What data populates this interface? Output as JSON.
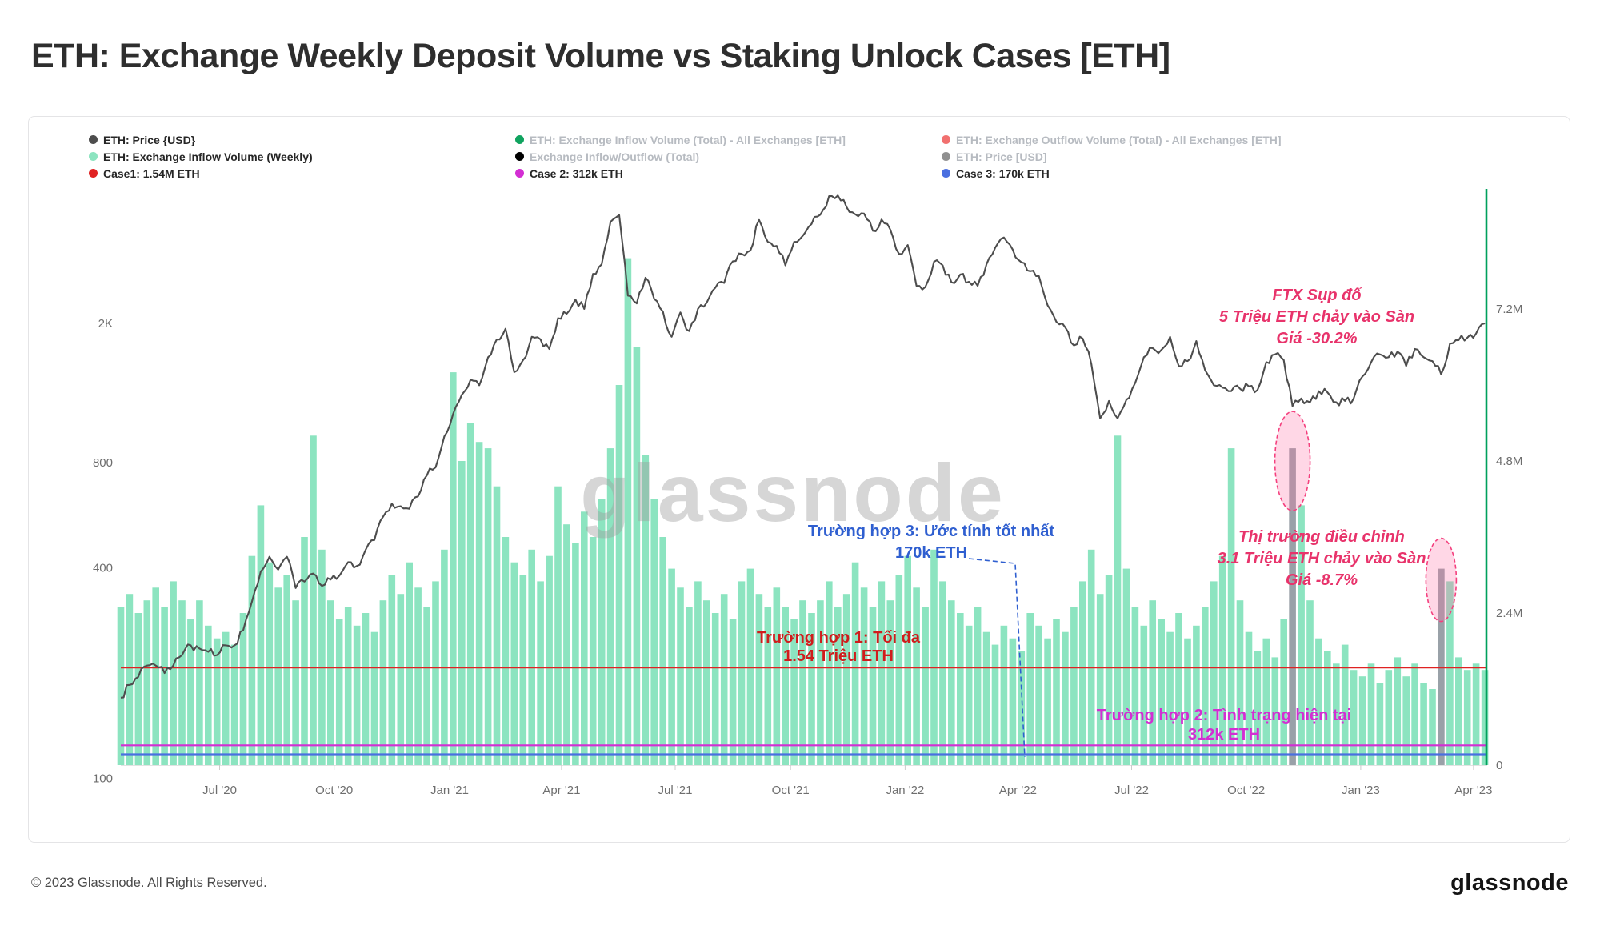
{
  "page_title": "ETH: Exchange Weekly Deposit Volume vs Staking Unlock Cases [ETH]",
  "watermark": "glassnode",
  "footer": {
    "copyright": "© 2023 Glassnode. All Rights Reserved.",
    "logo": "glassnode"
  },
  "legend": {
    "col1": [
      {
        "label": "ETH: Price {USD}",
        "dot": "#4d4d4d",
        "active": true
      },
      {
        "label": "ETH: Exchange Inflow Volume (Weekly)",
        "dot": "#8ce4c0",
        "active": true
      },
      {
        "label": "Case1: 1.54M ETH",
        "dot": "#e02222",
        "active": true
      }
    ],
    "col2": [
      {
        "label": "ETH: Exchange Inflow Volume (Total) - All Exchanges [ETH]",
        "dot": "#10a35f",
        "active": false
      },
      {
        "label": "Exchange Inflow/Outflow (Total)",
        "dot": "#000000",
        "active": false
      },
      {
        "label": "Case 2: 312k ETH",
        "dot": "#d32ed3",
        "active": true
      }
    ],
    "col3": [
      {
        "label": "ETH: Exchange Outflow Volume (Total) - All Exchanges [ETH]",
        "dot": "#f1706f",
        "active": false
      },
      {
        "label": "ETH: Price [USD]",
        "dot": "#909090",
        "active": false
      },
      {
        "label": "Case 3: 170k ETH",
        "dot": "#4a6fe0",
        "active": true
      }
    ]
  },
  "chart_data": {
    "type": "combo",
    "x_unit": "week",
    "x_range": [
      "Apr 2020",
      "Apr 2023"
    ],
    "x_ticks": [
      {
        "label": "Jul '20",
        "week": 11.3
      },
      {
        "label": "Oct '20",
        "week": 24.4
      },
      {
        "label": "Jan '21",
        "week": 37.6
      },
      {
        "label": "Apr '21",
        "week": 50.4
      },
      {
        "label": "Jul '21",
        "week": 63.4
      },
      {
        "label": "Oct '21",
        "week": 76.6
      },
      {
        "label": "Jan '22",
        "week": 89.7
      },
      {
        "label": "Apr '22",
        "week": 102.6
      },
      {
        "label": "Jul '22",
        "week": 115.6
      },
      {
        "label": "Oct '22",
        "week": 128.7
      },
      {
        "label": "Jan '23",
        "week": 141.8
      },
      {
        "label": "Apr '23",
        "week": 154.7
      }
    ],
    "price_axis": {
      "side": "left",
      "scale": "log",
      "unit": "USD",
      "ticks": [
        {
          "label": "2K",
          "value": 2000
        },
        {
          "label": "800",
          "value": 800
        },
        {
          "label": "400",
          "value": 400
        },
        {
          "label": "100",
          "value": 100
        }
      ]
    },
    "volume_axis": {
      "side": "right",
      "scale": "linear",
      "unit": "ETH",
      "ticks": [
        {
          "label": "7.2M",
          "value_m": 7.2
        },
        {
          "label": "4.8M",
          "value_m": 4.8
        },
        {
          "label": "2.4M",
          "value_m": 2.4
        },
        {
          "label": "0",
          "value_m": 0
        }
      ]
    },
    "series": [
      {
        "name": "ETH: Exchange Inflow Volume (Weekly)",
        "type": "bar",
        "unit": "million ETH",
        "color": "#8ce4c0",
        "values": [
          2.5,
          2.7,
          2.4,
          2.6,
          2.8,
          2.5,
          2.9,
          2.6,
          2.3,
          2.6,
          2.2,
          2.0,
          2.1,
          1.9,
          2.4,
          3.3,
          4.1,
          3.2,
          2.8,
          3.0,
          2.6,
          3.6,
          5.2,
          3.4,
          2.6,
          2.3,
          2.5,
          2.2,
          2.4,
          2.1,
          2.6,
          3.0,
          2.7,
          3.2,
          2.8,
          2.5,
          2.9,
          3.4,
          6.2,
          4.8,
          5.4,
          5.1,
          5.0,
          4.4,
          3.6,
          3.2,
          3.0,
          3.4,
          2.9,
          3.3,
          4.4,
          3.8,
          3.5,
          4.0,
          3.6,
          4.2,
          5.0,
          6.0,
          8.0,
          6.6,
          4.9,
          4.2,
          3.6,
          3.1,
          2.8,
          2.5,
          2.9,
          2.6,
          2.4,
          2.7,
          2.3,
          2.9,
          3.1,
          2.7,
          2.5,
          2.8,
          2.5,
          2.3,
          2.6,
          2.4,
          2.6,
          2.9,
          2.5,
          2.7,
          3.2,
          2.8,
          2.5,
          2.9,
          2.6,
          3.0,
          3.3,
          2.8,
          2.5,
          3.4,
          2.9,
          2.6,
          2.4,
          2.2,
          2.5,
          2.1,
          1.9,
          2.2,
          2.0,
          1.8,
          2.4,
          2.2,
          2.0,
          2.3,
          2.1,
          2.5,
          2.9,
          3.4,
          2.7,
          3.0,
          5.2,
          3.1,
          2.5,
          2.2,
          2.6,
          2.3,
          2.1,
          2.4,
          2.0,
          2.2,
          2.5,
          2.9,
          3.3,
          5.0,
          2.6,
          2.1,
          1.8,
          2.0,
          1.7,
          2.3,
          5.0,
          4.1,
          2.6,
          2.0,
          1.8,
          1.6,
          1.9,
          1.5,
          1.4,
          1.6,
          1.3,
          1.5,
          1.7,
          1.4,
          1.6,
          1.3,
          1.2,
          3.1,
          2.9,
          1.7,
          1.5,
          1.6,
          1.5
        ]
      },
      {
        "name": "ETH: Price (USD)",
        "type": "line",
        "unit": "USD",
        "color": "#4d4d4d",
        "values": [
          170,
          185,
          195,
          210,
          210,
          200,
          210,
          225,
          240,
          235,
          230,
          225,
          240,
          240,
          265,
          320,
          390,
          430,
          395,
          430,
          350,
          365,
          385,
          355,
          370,
          380,
          415,
          405,
          450,
          480,
          560,
          610,
          600,
          590,
          640,
          735,
          775,
          950,
          1100,
          1250,
          1380,
          1330,
          1600,
          1800,
          1930,
          1450,
          1570,
          1830,
          1800,
          1690,
          2070,
          2130,
          2340,
          2200,
          2770,
          2950,
          3900,
          4080,
          2400,
          2280,
          2700,
          2350,
          2160,
          1830,
          2150,
          1900,
          2200,
          2290,
          2530,
          2610,
          3010,
          3160,
          3230,
          3950,
          3420,
          3330,
          2930,
          3420,
          3560,
          3850,
          4090,
          4620,
          4640,
          4300,
          4100,
          4120,
          3680,
          3960,
          3710,
          3160,
          3350,
          2560,
          2540,
          3000,
          2930,
          2620,
          2760,
          2630,
          2560,
          2950,
          3290,
          3520,
          3250,
          2990,
          2820,
          2730,
          2250,
          2020,
          1950,
          1730,
          1810,
          1530,
          1070,
          1200,
          1070,
          1210,
          1350,
          1600,
          1700,
          1680,
          1830,
          1510,
          1560,
          1780,
          1470,
          1330,
          1310,
          1280,
          1300,
          1320,
          1290,
          1550,
          1630,
          1570,
          1160,
          1220,
          1190,
          1280,
          1270,
          1190,
          1200,
          1220,
          1410,
          1550,
          1630,
          1600,
          1660,
          1510,
          1690,
          1600,
          1560,
          1430,
          1750,
          1790,
          1820,
          1870,
          2000
        ]
      }
    ],
    "highlight_bars": [
      {
        "week": 134,
        "color": "#99a1a8",
        "note": "FTX collapse inflow spike ~5M ETH"
      },
      {
        "week": 151,
        "color": "#99a1a8",
        "note": "Market correction inflow spike ~3.1M ETH"
      }
    ],
    "reference_lines": [
      {
        "name": "Case 1",
        "label": "Case1: 1.54M ETH",
        "value_m": 1.54,
        "color": "#e02222"
      },
      {
        "name": "Case 2",
        "label": "Case 2: 312k ETH",
        "value_m": 0.312,
        "color": "#d32ed3"
      },
      {
        "name": "Case 3",
        "label": "Case 3: 170k ETH",
        "value_m": 0.17,
        "color": "#4a6fe0"
      }
    ],
    "annotations": {
      "ftx": {
        "color": "#e8336b",
        "lines": [
          "FTX Sụp đổ",
          "5 Triệu ETH chảy vào Sàn",
          "Giá -30.2%"
        ]
      },
      "case3": {
        "color": "#2f5fd0",
        "lines": [
          "Trường hợp 3: Ước tính tốt nhất",
          "170k ETH"
        ]
      },
      "corr": {
        "color": "#e8336b",
        "lines": [
          "Thị trường điều chỉnh",
          "3.1 Triệu ETH chảy vào Sàn",
          "Giá -8.7%"
        ]
      },
      "case1": {
        "color": "#d01c1c",
        "lines": [
          "Trường hợp 1: Tối đa",
          "1.54 Triệu ETH"
        ]
      },
      "case2": {
        "color": "#d32ed3",
        "lines": [
          "Trường hợp 2: Tình trạng hiện tại",
          "312k ETH"
        ]
      }
    }
  }
}
